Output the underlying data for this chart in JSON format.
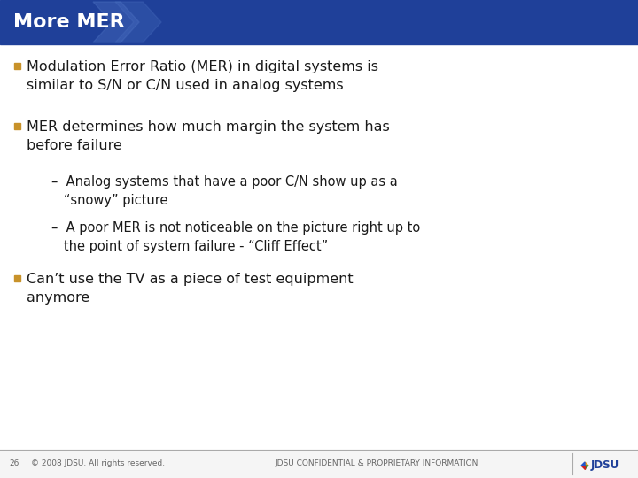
{
  "title": "More MER",
  "title_color": "#ffffff",
  "header_bg": "#1f4099",
  "body_bg": "#ffffff",
  "slide_bg": "#ffffff",
  "bullet_color": "#c8922a",
  "text_color": "#1a1a1a",
  "sub_text_color": "#1a1a1a",
  "footer_line_color": "#aaaaaa",
  "bullets": [
    "Modulation Error Ratio (MER) in digital systems is\nsimilar to S/N or C/N used in analog systems",
    "MER determines how much margin the system has\nbefore failure"
  ],
  "sub_bullets": [
    "–  Analog systems that have a poor C/N show up as a\n   “snowy” picture",
    "–  A poor MER is not noticeable on the picture right up to\n   the point of system failure - “Cliff Effect”"
  ],
  "final_bullet": "Can’t use the TV as a piece of test equipment\nanymore",
  "footer_left_num": "26",
  "footer_center": "© 2008 JDSU. All rights reserved.",
  "footer_right": "JDSU CONFIDENTIAL & PROPRIETARY INFORMATION"
}
